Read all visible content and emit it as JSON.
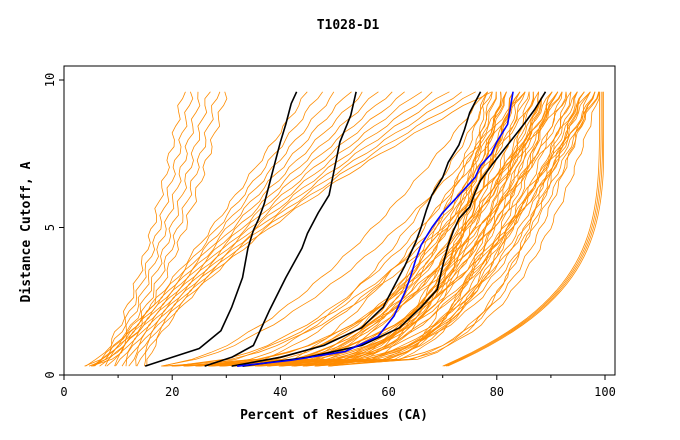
{
  "chart_data": {
    "type": "line",
    "title": "T1028-D1",
    "xlabel": "Percent of Residues (CA)",
    "ylabel": "Distance Cutoff, A",
    "xlim": [
      0,
      100
    ],
    "ylim": [
      0,
      10
    ],
    "x_ticks": [
      "0",
      "20",
      "40",
      "60",
      "80",
      "100"
    ],
    "y_ticks": [
      "0",
      "5",
      "10"
    ],
    "grid": false,
    "legend": "none",
    "colors": {
      "models": "#ff8c00",
      "highlight": "#000000",
      "reference": "#0000ff",
      "axes": "#000000"
    },
    "series": [
      {
        "color": "#000000",
        "x": [
          15,
          20,
          25,
          29,
          31,
          33,
          34,
          35,
          36,
          37,
          38,
          39,
          40,
          41,
          42,
          43
        ],
        "y": [
          0.3,
          0.6,
          0.9,
          1.5,
          2.3,
          3.3,
          4.3,
          4.9,
          5.3,
          5.8,
          6.5,
          7.2,
          7.9,
          8.5,
          9.2,
          9.6
        ]
      },
      {
        "color": "#000000",
        "x": [
          26,
          31,
          35,
          36,
          38,
          41,
          44,
          45,
          47,
          49,
          50,
          51,
          53,
          54
        ],
        "y": [
          0.3,
          0.6,
          1.0,
          1.4,
          2.2,
          3.3,
          4.3,
          4.8,
          5.5,
          6.1,
          7.0,
          7.9,
          8.8,
          9.6
        ]
      },
      {
        "color": "#000000",
        "x": [
          31,
          40,
          48,
          55,
          59,
          61,
          63,
          65,
          66,
          67,
          68,
          70,
          71,
          73,
          74,
          75,
          77
        ],
        "y": [
          0.3,
          0.6,
          1.0,
          1.6,
          2.3,
          3.0,
          3.7,
          4.5,
          5.0,
          5.6,
          6.1,
          6.7,
          7.2,
          7.8,
          8.3,
          8.9,
          9.6
        ]
      },
      {
        "color": "#000000",
        "x": [
          33,
          45,
          55,
          62,
          66,
          69,
          70,
          71,
          72,
          73,
          75,
          76,
          77,
          79,
          82,
          85,
          87,
          88,
          89
        ],
        "y": [
          0.3,
          0.6,
          1.0,
          1.6,
          2.3,
          2.9,
          3.7,
          4.4,
          4.9,
          5.3,
          5.7,
          6.2,
          6.6,
          7.1,
          7.8,
          8.5,
          9.0,
          9.3,
          9.6
        ]
      },
      {
        "color": "#0000ff",
        "x": [
          32,
          42,
          52,
          58,
          61,
          63,
          64,
          65,
          66,
          68,
          70,
          72,
          74,
          76,
          77,
          79,
          80,
          82,
          83
        ],
        "y": [
          0.3,
          0.5,
          0.8,
          1.3,
          2.0,
          2.8,
          3.3,
          3.9,
          4.4,
          5.0,
          5.5,
          5.9,
          6.3,
          6.7,
          7.1,
          7.5,
          7.9,
          8.5,
          9.6
        ]
      }
    ]
  }
}
